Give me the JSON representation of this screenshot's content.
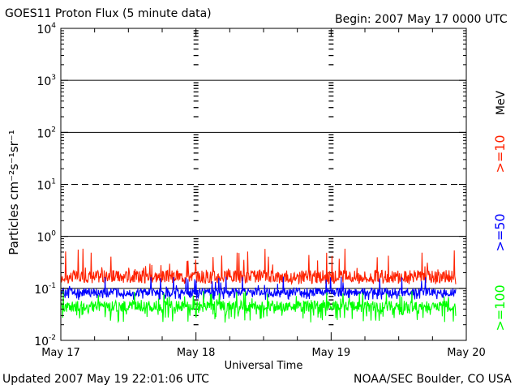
{
  "header": {
    "title": "GOES11 Proton Flux (5 minute data)",
    "begin": "Begin: 2007 May 17 0000 UTC"
  },
  "footer": {
    "updated": "Updated 2007 May 19 22:01:06 UTC",
    "credit": "NOAA/SEC Boulder, CO USA"
  },
  "chart_data": {
    "type": "line",
    "title": "GOES11 Proton Flux (5 minute data)",
    "xlabel": "Universal Time",
    "ylabel": "Particles cm⁻²s⁻¹sr⁻¹",
    "yscale": "log",
    "ylim": [
      0.01,
      10000
    ],
    "xlim": [
      "2007-05-17",
      "2007-05-20"
    ],
    "x_ticks": [
      "May 17",
      "May 18",
      "May 19",
      "May 20"
    ],
    "y_ticks": [
      {
        "base": "10",
        "exp": "-2"
      },
      {
        "base": "10",
        "exp": "-1"
      },
      {
        "base": "10",
        "exp": "0"
      },
      {
        "base": "10",
        "exp": "1"
      },
      {
        "base": "10",
        "exp": "2"
      },
      {
        "base": "10",
        "exp": "3"
      },
      {
        "base": "10",
        "exp": "4"
      }
    ],
    "energy_unit": "MeV",
    "series": [
      {
        "name": ">=10",
        "color": "#ff2200",
        "typical": 0.17,
        "low": 0.12,
        "high": 0.6
      },
      {
        "name": ">=50",
        "color": "#0000ff",
        "typical": 0.085,
        "low": 0.06,
        "high": 0.17
      },
      {
        "name": ">=100",
        "color": "#00ff00",
        "typical": 0.045,
        "low": 0.022,
        "high": 0.09
      }
    ],
    "reference_lines": [
      {
        "value": 10,
        "style": "dashed"
      },
      {
        "value": 0.1,
        "style": "solid"
      }
    ]
  }
}
